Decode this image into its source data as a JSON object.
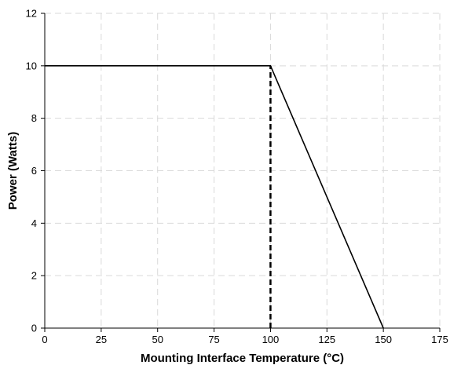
{
  "chart_data": {
    "type": "line",
    "xlabel": "Mounting Interface Temperature (°C)",
    "ylabel": "Power (Watts)",
    "xlim": [
      0,
      175
    ],
    "ylim": [
      0,
      12
    ],
    "xticks": [
      0,
      25,
      50,
      75,
      100,
      125,
      150,
      175
    ],
    "yticks": [
      0,
      2,
      4,
      6,
      8,
      10,
      12
    ],
    "grid": true,
    "colors": {
      "line": "#000000",
      "grid": "#d9d9d9"
    },
    "series": [
      {
        "style": "solid",
        "x": [
          0,
          100,
          150
        ],
        "y": [
          10,
          10,
          0
        ]
      },
      {
        "style": "dashed",
        "x": [
          100,
          100
        ],
        "y": [
          0,
          10
        ]
      }
    ]
  }
}
